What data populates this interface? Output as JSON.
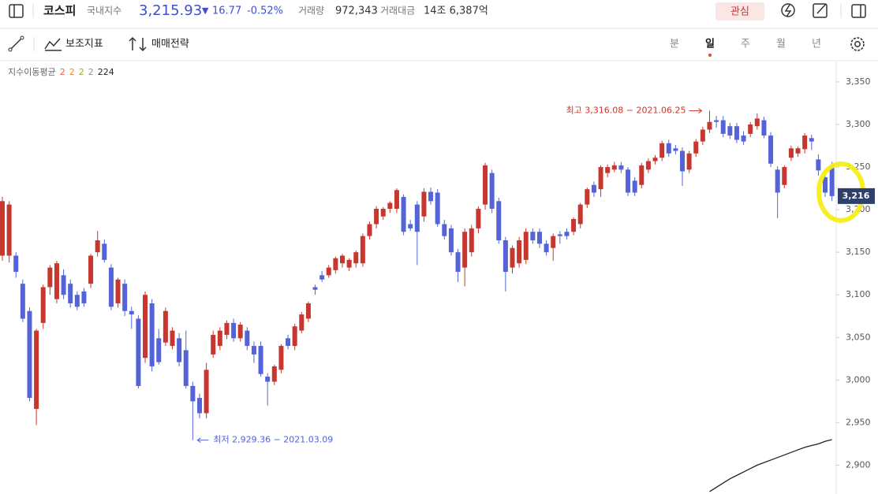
{
  "header": {
    "name": "코스피",
    "market": "국내지수",
    "price": "3,215.93",
    "direction": "▼",
    "change": "16.77",
    "change_pct": "-0.52%",
    "volume_label": "거래량",
    "volume": "972,343",
    "amount_label": "거래대금",
    "amount": "14조 6,387억",
    "watch_button": "관심"
  },
  "toolbar": {
    "indicators": "보조지표",
    "strategy": "매매전략",
    "periods": [
      "분",
      "일",
      "주",
      "월",
      "년"
    ],
    "active_period": 1
  },
  "chart_data": {
    "type": "candlestick",
    "up_color": "#c8372f",
    "down_color": "#5463d6",
    "ylim": [
      2868,
      3374
    ],
    "yticks": [
      {
        "value": 3350,
        "label": "3,350"
      },
      {
        "value": 3300,
        "label": "3,300"
      },
      {
        "value": 3250,
        "label": "3,250"
      },
      {
        "value": 3200,
        "label": "3,200"
      },
      {
        "value": 3150,
        "label": "3,150"
      },
      {
        "value": 3100,
        "label": "3,100"
      },
      {
        "value": 3050,
        "label": "3,050"
      },
      {
        "value": 3000,
        "label": "3,000"
      },
      {
        "value": 2950,
        "label": "2,950"
      },
      {
        "value": 2900,
        "label": "2,900"
      }
    ],
    "ohlc": [
      [
        3146,
        3215,
        3140,
        3210
      ],
      [
        3146,
        3210,
        3138,
        3206
      ],
      [
        3146,
        3150,
        3120,
        3127
      ],
      [
        3113,
        3118,
        3068,
        3072
      ],
      [
        3081,
        3085,
        2975,
        2979
      ],
      [
        2966,
        3060,
        2947,
        3058
      ],
      [
        3067,
        3112,
        3060,
        3109
      ],
      [
        3109,
        3135,
        3100,
        3132
      ],
      [
        3095,
        3140,
        3090,
        3137
      ],
      [
        3123,
        3130,
        3095,
        3100
      ],
      [
        3113,
        3118,
        3085,
        3090
      ],
      [
        3100,
        3104,
        3082,
        3086
      ],
      [
        3104,
        3108,
        3086,
        3090
      ],
      [
        3113,
        3148,
        3108,
        3146
      ],
      [
        3150,
        3175,
        3145,
        3164
      ],
      [
        3160,
        3165,
        3138,
        3141
      ],
      [
        3132,
        3136,
        3082,
        3086
      ],
      [
        3090,
        3120,
        3085,
        3118
      ],
      [
        3113,
        3118,
        3075,
        3081
      ],
      [
        3081,
        3086,
        3060,
        3077
      ],
      [
        3072,
        3076,
        2990,
        2993
      ],
      [
        3026,
        3104,
        3020,
        3100
      ],
      [
        3090,
        3095,
        3010,
        3016
      ],
      [
        3049,
        3060,
        3018,
        3021
      ],
      [
        3044,
        3085,
        3040,
        3081
      ],
      [
        3040,
        3062,
        3036,
        3058
      ],
      [
        3049,
        3055,
        3016,
        3021
      ],
      [
        3035,
        3058,
        2990,
        2993
      ],
      [
        2993,
        2998,
        2929.36,
        2975
      ],
      [
        2979,
        2984,
        2955,
        2961
      ],
      [
        2961,
        3020,
        2955,
        3012
      ],
      [
        3030,
        3058,
        3026,
        3053
      ],
      [
        3040,
        3062,
        3035,
        3058
      ],
      [
        3053,
        3070,
        3048,
        3067
      ],
      [
        3067,
        3072,
        3045,
        3049
      ],
      [
        3049,
        3068,
        3045,
        3065
      ],
      [
        3058,
        3062,
        3035,
        3040
      ],
      [
        3040,
        3045,
        3020,
        3030
      ],
      [
        3040,
        3045,
        3004,
        3007
      ],
      [
        3004,
        3008,
        2970,
        2998
      ],
      [
        2998,
        3018,
        2994,
        3016
      ],
      [
        3012,
        3042,
        3008,
        3040
      ],
      [
        3049,
        3053,
        3036,
        3040
      ],
      [
        3040,
        3066,
        3035,
        3063
      ],
      [
        3058,
        3080,
        3055,
        3077
      ],
      [
        3072,
        3092,
        3068,
        3090
      ],
      [
        3109,
        3112,
        3100,
        3106
      ],
      [
        3123,
        3128,
        3115,
        3118
      ],
      [
        3123,
        3135,
        3120,
        3132
      ],
      [
        3129,
        3145,
        3125,
        3143
      ],
      [
        3137,
        3148,
        3132,
        3146
      ],
      [
        3132,
        3143,
        3128,
        3141
      ],
      [
        3137,
        3152,
        3132,
        3150
      ],
      [
        3137,
        3172,
        3133,
        3169
      ],
      [
        3169,
        3186,
        3165,
        3183
      ],
      [
        3183,
        3204,
        3178,
        3201
      ],
      [
        3192,
        3203,
        3188,
        3201
      ],
      [
        3201,
        3210,
        3196,
        3208
      ],
      [
        3201,
        3225,
        3196,
        3223
      ],
      [
        3215,
        3218,
        3170,
        3174
      ],
      [
        3183,
        3188,
        3175,
        3178
      ],
      [
        3206,
        3210,
        3135,
        3174
      ],
      [
        3192,
        3225,
        3186,
        3221
      ],
      [
        3221,
        3226,
        3206,
        3210
      ],
      [
        3220,
        3224,
        3180,
        3183
      ],
      [
        3183,
        3188,
        3165,
        3169
      ],
      [
        3178,
        3182,
        3146,
        3150
      ],
      [
        3150,
        3154,
        3115,
        3127
      ],
      [
        3132,
        3178,
        3110,
        3174
      ],
      [
        3150,
        3182,
        3145,
        3178
      ],
      [
        3178,
        3204,
        3172,
        3201
      ],
      [
        3206,
        3255,
        3200,
        3252
      ],
      [
        3243,
        3247,
        3196,
        3201
      ],
      [
        3210,
        3214,
        3160,
        3164
      ],
      [
        3164,
        3168,
        3104,
        3127
      ],
      [
        3132,
        3158,
        3125,
        3155
      ],
      [
        3137,
        3168,
        3132,
        3164
      ],
      [
        3141,
        3178,
        3136,
        3174
      ],
      [
        3174,
        3178,
        3160,
        3164
      ],
      [
        3174,
        3178,
        3155,
        3160
      ],
      [
        3160,
        3164,
        3146,
        3150
      ],
      [
        3155,
        3172,
        3140,
        3169
      ],
      [
        3171,
        3175,
        3160,
        3169
      ],
      [
        3174,
        3178,
        3165,
        3169
      ],
      [
        3174,
        3191,
        3170,
        3189
      ],
      [
        3183,
        3208,
        3178,
        3206
      ],
      [
        3206,
        3226,
        3202,
        3224
      ],
      [
        3229,
        3233,
        3215,
        3220
      ],
      [
        3224,
        3252,
        3215,
        3250
      ],
      [
        3243,
        3253,
        3238,
        3250
      ],
      [
        3247,
        3256,
        3244,
        3252
      ],
      [
        3252,
        3256,
        3243,
        3247
      ],
      [
        3247,
        3250,
        3216,
        3220
      ],
      [
        3234,
        3238,
        3216,
        3220
      ],
      [
        3229,
        3255,
        3225,
        3252
      ],
      [
        3247,
        3260,
        3243,
        3257
      ],
      [
        3257,
        3264,
        3253,
        3261
      ],
      [
        3261,
        3281,
        3257,
        3278
      ],
      [
        3278,
        3282,
        3262,
        3266
      ],
      [
        3272,
        3276,
        3265,
        3269
      ],
      [
        3269,
        3273,
        3228,
        3245
      ],
      [
        3247,
        3269,
        3243,
        3266
      ],
      [
        3266,
        3283,
        3262,
        3280
      ],
      [
        3280,
        3297,
        3276,
        3294
      ],
      [
        3294,
        3316.08,
        3290,
        3303
      ],
      [
        3305,
        3310,
        3296,
        3303
      ],
      [
        3305,
        3310,
        3285,
        3289
      ],
      [
        3298,
        3302,
        3283,
        3287
      ],
      [
        3298,
        3302,
        3278,
        3282
      ],
      [
        3287,
        3292,
        3276,
        3280
      ],
      [
        3289,
        3303,
        3285,
        3300
      ],
      [
        3298,
        3313,
        3294,
        3307
      ],
      [
        3305,
        3309,
        3284,
        3287
      ],
      [
        3287,
        3291,
        3250,
        3254
      ],
      [
        3247,
        3251,
        3190,
        3220
      ],
      [
        3229,
        3252,
        3225,
        3250
      ],
      [
        3261,
        3275,
        3257,
        3272
      ],
      [
        3266,
        3274,
        3262,
        3272
      ],
      [
        3271,
        3290,
        3266,
        3287
      ],
      [
        3284,
        3288,
        3270,
        3280
      ],
      [
        3259,
        3265,
        3240,
        3246
      ],
      [
        3238,
        3242,
        3215,
        3220
      ],
      [
        3252,
        3256,
        3210,
        3215.93
      ]
    ],
    "moving_averages": {
      "label": "지수이동평균",
      "series": [
        {
          "name": "2",
          "color": "#e0645a"
        },
        {
          "name": "2",
          "color": "#e08a3a"
        },
        {
          "name": "2",
          "color": "#9aaa3a"
        },
        {
          "name": "2",
          "color": "#8a9a8a"
        },
        {
          "name": "224",
          "color": "#222222",
          "values": [
            null,
            null,
            null,
            null,
            null,
            null,
            null,
            null,
            null,
            null,
            null,
            null,
            null,
            null,
            null,
            null,
            null,
            null,
            null,
            null,
            null,
            null,
            null,
            null,
            null,
            null,
            null,
            null,
            null,
            null,
            null,
            null,
            null,
            null,
            null,
            null,
            null,
            null,
            null,
            null,
            null,
            null,
            null,
            null,
            null,
            null,
            null,
            null,
            null,
            null,
            null,
            null,
            null,
            null,
            null,
            null,
            null,
            null,
            null,
            null,
            null,
            null,
            null,
            null,
            null,
            null,
            null,
            null,
            null,
            null,
            null,
            null,
            null,
            null,
            null,
            null,
            null,
            null,
            null,
            null,
            null,
            null,
            null,
            null,
            null,
            null,
            null,
            null,
            null,
            null,
            null,
            null,
            null,
            null,
            null,
            null,
            null,
            null,
            null,
            null,
            null,
            null,
            null,
            null,
            2869,
            2874,
            2879,
            2884,
            2888,
            2892,
            2896,
            2900,
            2903,
            2906,
            2909,
            2912,
            2915,
            2918,
            2921,
            2923,
            2925,
            2928,
            2930
          ]
        }
      ]
    },
    "high_annotation": {
      "text": "최고 3,316.08 − 2021.06.25",
      "value": 3316.08
    },
    "low_annotation": {
      "text": "최저 2,929.36 − 2021.03.09",
      "value": 2929.36
    },
    "current_price_tag": "3,216"
  }
}
